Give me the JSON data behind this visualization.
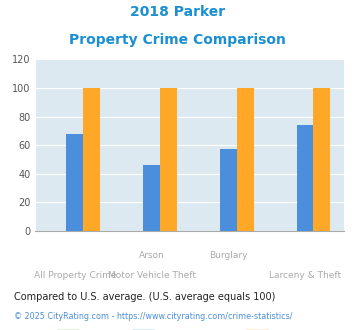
{
  "title_line1": "2018 Parker",
  "title_line2": "Property Crime Comparison",
  "parker": [
    0,
    0,
    0,
    0
  ],
  "pennsylvania": [
    68,
    46,
    57,
    74
  ],
  "national": [
    100,
    100,
    100,
    100
  ],
  "parker_color": "#8bc34a",
  "pennsylvania_color": "#4b8edb",
  "national_color": "#ffa726",
  "title_color": "#1a8fd1",
  "xlabel_color_dark": "#aaaaaa",
  "ylim": [
    0,
    120
  ],
  "yticks": [
    0,
    20,
    40,
    60,
    80,
    100,
    120
  ],
  "footnote": "Compared to U.S. average. (U.S. average equals 100)",
  "copyright": "© 2025 CityRating.com - https://www.cityrating.com/crime-statistics/",
  "grid_color": "#ffffff",
  "axis_bg": "#dce9f0"
}
